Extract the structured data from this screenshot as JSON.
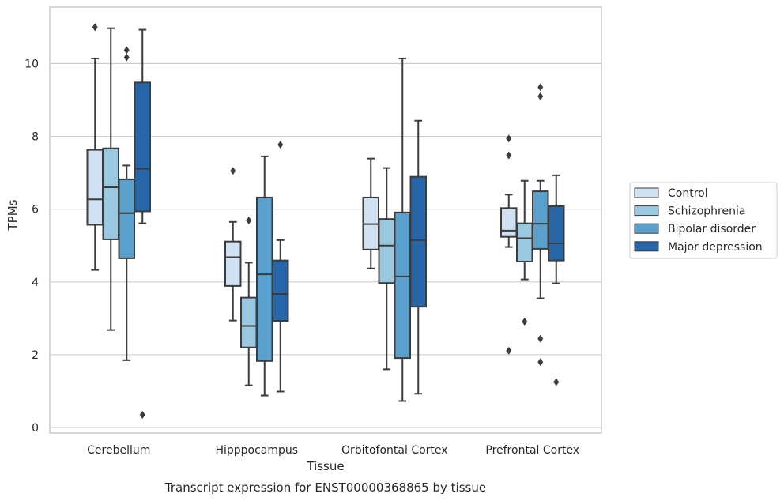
{
  "chart_data": {
    "type": "box",
    "xlabel": "Tissue",
    "ylabel": "TPMs",
    "caption": "Transcript expression for ENST00000368865 by tissue",
    "ylim": [
      -0.15,
      11.55
    ],
    "yticks": [
      "0",
      "2",
      "4",
      "6",
      "8",
      "10"
    ],
    "grid": "horizontal",
    "legend_position": "right",
    "categories": [
      "Cerebellum",
      "Hipppocampus",
      "Orbitofontal Cortex",
      "Prefrontal Cortex"
    ],
    "series": [
      {
        "name": "Control",
        "color": "#d0e1f2",
        "boxes": [
          {
            "whisker_low": 4.33,
            "q1": 5.57,
            "median": 6.27,
            "q3": 7.63,
            "whisker_high": 10.14,
            "outliers": [
              11.0
            ]
          },
          {
            "whisker_low": 2.94,
            "q1": 3.89,
            "median": 4.68,
            "q3": 5.11,
            "whisker_high": 5.65,
            "outliers": [
              7.05
            ]
          },
          {
            "whisker_low": 4.37,
            "q1": 4.89,
            "median": 5.59,
            "q3": 6.32,
            "whisker_high": 7.39,
            "outliers": []
          },
          {
            "whisker_low": 4.96,
            "q1": 5.24,
            "median": 5.41,
            "q3": 6.03,
            "whisker_high": 6.4,
            "outliers": [
              7.94,
              7.48,
              2.11
            ]
          }
        ]
      },
      {
        "name": "Schizophrenia",
        "color": "#9ac8e0",
        "boxes": [
          {
            "whisker_low": 2.68,
            "q1": 5.17,
            "median": 6.6,
            "q3": 7.67,
            "whisker_high": 10.97,
            "outliers": []
          },
          {
            "whisker_low": 1.16,
            "q1": 2.2,
            "median": 2.79,
            "q3": 3.57,
            "whisker_high": 4.53,
            "outliers": [
              5.69
            ]
          },
          {
            "whisker_low": 1.6,
            "q1": 3.97,
            "median": 5.0,
            "q3": 5.73,
            "whisker_high": 7.13,
            "outliers": []
          },
          {
            "whisker_low": 4.07,
            "q1": 4.56,
            "median": 5.2,
            "q3": 5.61,
            "whisker_high": 6.78,
            "outliers": [
              2.91
            ]
          }
        ]
      },
      {
        "name": "Bipolar disorder",
        "color": "#5aa0cd",
        "boxes": [
          {
            "whisker_low": 1.85,
            "q1": 4.65,
            "median": 5.89,
            "q3": 6.82,
            "whisker_high": 7.2,
            "outliers": [
              10.37,
              10.17
            ]
          },
          {
            "whisker_low": 0.88,
            "q1": 1.83,
            "median": 4.21,
            "q3": 6.32,
            "whisker_high": 7.45,
            "outliers": []
          },
          {
            "whisker_low": 0.73,
            "q1": 1.91,
            "median": 4.15,
            "q3": 5.91,
            "whisker_high": 10.14,
            "outliers": []
          },
          {
            "whisker_low": 3.55,
            "q1": 4.91,
            "median": 5.6,
            "q3": 6.49,
            "whisker_high": 6.78,
            "outliers": [
              9.35,
              9.1,
              2.44,
              1.8
            ]
          }
        ]
      },
      {
        "name": "Major depression",
        "color": "#2666a9",
        "boxes": [
          {
            "whisker_low": 5.61,
            "q1": 5.94,
            "median": 7.11,
            "q3": 9.48,
            "whisker_high": 10.93,
            "outliers": [
              0.35
            ]
          },
          {
            "whisker_low": 0.99,
            "q1": 2.93,
            "median": 3.67,
            "q3": 4.59,
            "whisker_high": 5.15,
            "outliers": [
              7.77
            ]
          },
          {
            "whisker_low": 0.93,
            "q1": 3.32,
            "median": 5.15,
            "q3": 6.89,
            "whisker_high": 8.43,
            "outliers": []
          },
          {
            "whisker_low": 3.96,
            "q1": 4.59,
            "median": 5.06,
            "q3": 6.08,
            "whisker_high": 6.93,
            "outliers": [
              1.25
            ]
          }
        ]
      }
    ]
  }
}
